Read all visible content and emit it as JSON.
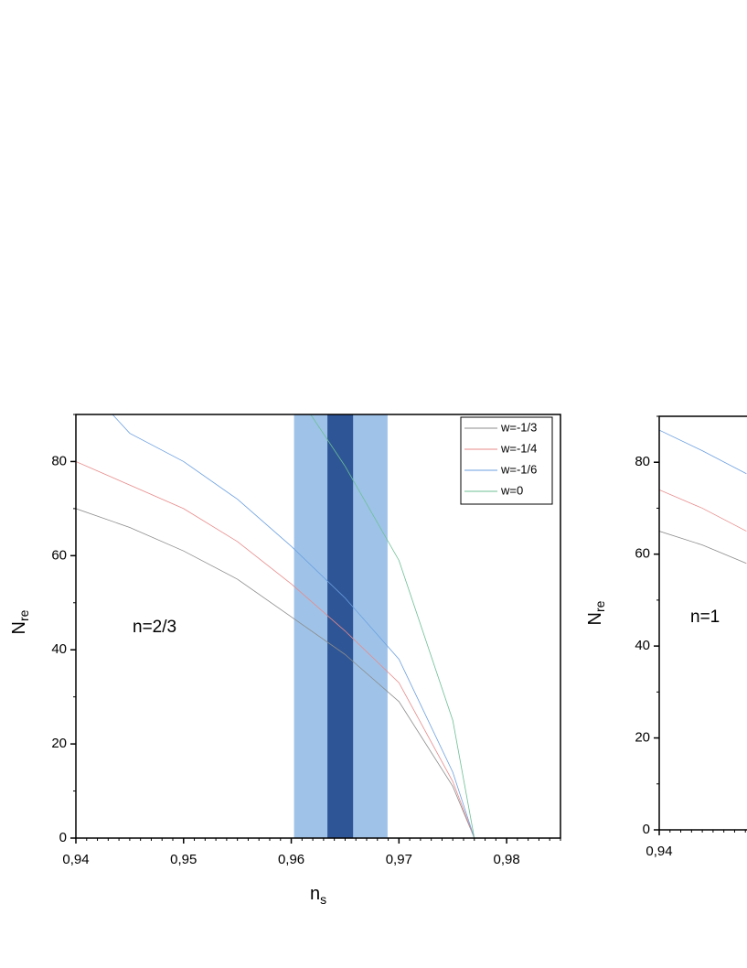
{
  "chart_data": [
    {
      "type": "line",
      "annotation": "n=2/3",
      "x_label": "n",
      "x_label_sub": "s",
      "y_label": "N",
      "y_label_sub": "re",
      "xlim": [
        0.94,
        0.985
      ],
      "ylim": [
        0,
        90
      ],
      "xticks": [
        {
          "value": 0.94,
          "label": "0,94"
        },
        {
          "value": 0.95,
          "label": "0,95"
        },
        {
          "value": 0.96,
          "label": "0,96"
        },
        {
          "value": 0.97,
          "label": "0,97"
        },
        {
          "value": 0.98,
          "label": "0,98"
        }
      ],
      "yticks": [
        0,
        20,
        40,
        60,
        80
      ],
      "x_minor_divisions": 10,
      "y_minor_divisions": 2,
      "legend": "upper right",
      "bands": [
        {
          "range": [
            0.9603,
            0.9689
          ],
          "color": "#9fc3e8"
        },
        {
          "range": [
            0.9634,
            0.9657
          ],
          "color": "#2e5596"
        }
      ],
      "series": [
        {
          "name": "w=-1/3",
          "color": "#8c8c8c",
          "x": [
            0.94,
            0.945,
            0.95,
            0.955,
            0.96,
            0.965,
            0.97,
            0.975,
            0.977
          ],
          "values": [
            70,
            66,
            61,
            55,
            47,
            39,
            29,
            11,
            0
          ]
        },
        {
          "name": "w=-1/4",
          "color": "#e88a8a",
          "x": [
            0.94,
            0.945,
            0.95,
            0.955,
            0.96,
            0.965,
            0.97,
            0.975,
            0.977
          ],
          "values": [
            80,
            75,
            70,
            63,
            54,
            44,
            33,
            12,
            0
          ]
        },
        {
          "name": "w=-1/6",
          "color": "#6b9fe0",
          "x": [
            0.9434,
            0.945,
            0.95,
            0.955,
            0.96,
            0.965,
            0.97,
            0.975,
            0.977
          ],
          "values": [
            90,
            86,
            80,
            72,
            62,
            51,
            38,
            14,
            0
          ]
        },
        {
          "name": "w=0",
          "color": "#6cbf95",
          "x": [
            0.9618,
            0.965,
            0.97,
            0.975,
            0.977
          ],
          "values": [
            90,
            79,
            59,
            25,
            0
          ]
        }
      ]
    },
    {
      "type": "line",
      "annotation": "n=1",
      "y_label": "N",
      "y_label_sub": "re",
      "xlim": [
        0.94,
        0.985
      ],
      "ylim": [
        0,
        90
      ],
      "xticks": [
        {
          "value": 0.94,
          "label": "0,94"
        }
      ],
      "yticks": [
        0,
        20,
        40,
        60,
        80
      ],
      "x_minor_divisions": 10,
      "y_minor_divisions": 2,
      "series": [
        {
          "color": "#8c8c8c",
          "x": [
            0.94,
            0.944,
            0.9481
          ],
          "values": [
            65,
            62,
            58
          ]
        },
        {
          "color": "#e88a8a",
          "x": [
            0.94,
            0.944,
            0.9481
          ],
          "values": [
            74,
            70,
            65
          ]
        },
        {
          "color": "#6b9fe0",
          "x": [
            0.94,
            0.944,
            0.9481
          ],
          "values": [
            87,
            82.5,
            77.5
          ]
        }
      ]
    }
  ]
}
